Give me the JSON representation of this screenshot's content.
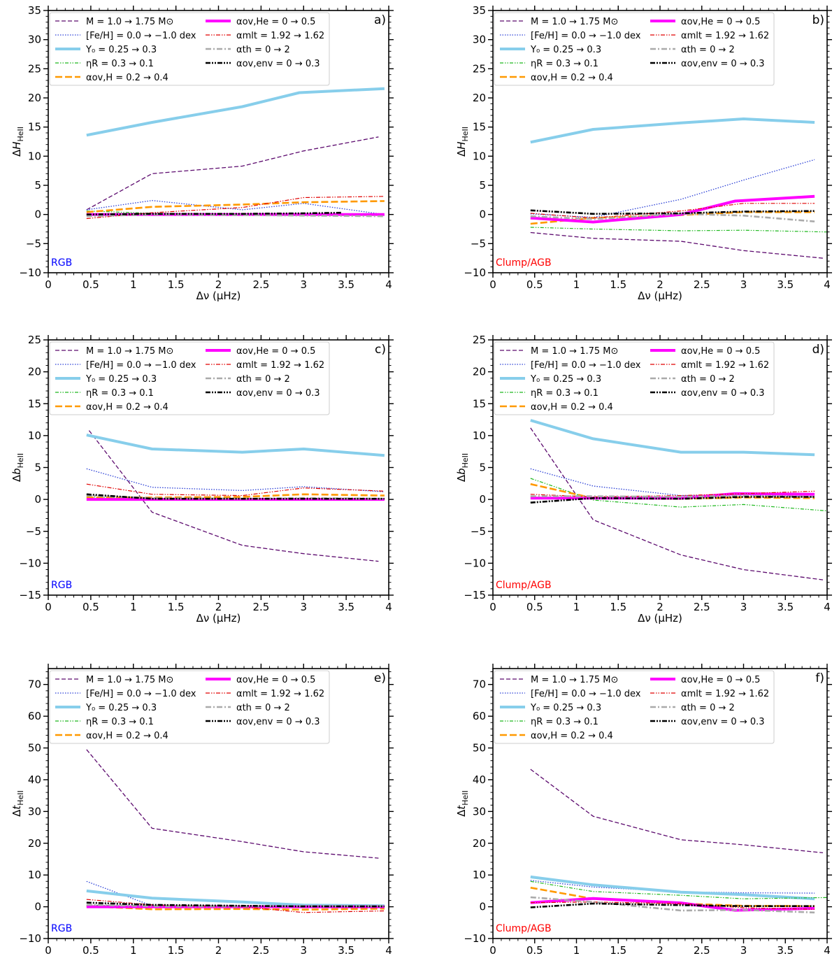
{
  "legend_entries": [
    {
      "key": "M",
      "text": "M = 1.0 → 1.75 M⊙",
      "color": "#5c0a6e",
      "dash": "6,3",
      "width": 1.3
    },
    {
      "key": "FeH",
      "text": "[Fe/H] = 0.0 → −1.0 dex",
      "color": "#2a3fd6",
      "dash": "1.5,2",
      "width": 1.3
    },
    {
      "key": "Y0",
      "text": "Y₀ = 0.25 → 0.3",
      "color": "#87ceeb",
      "dash": "",
      "width": 4
    },
    {
      "key": "etaR",
      "text": "ηR = 0.3 → 0.1",
      "color": "#1db81d",
      "dash": "5,2,1.5,2,1.5,2",
      "width": 1.2
    },
    {
      "key": "aovH",
      "text": "αov,H = 0.2 → 0.4",
      "color": "#ff9900",
      "dash": "10,4",
      "width": 2.6
    },
    {
      "key": "aovHe",
      "text": "αov,He = 0 → 0.5",
      "color": "#ff00ff",
      "dash": "",
      "width": 4
    },
    {
      "key": "amlt",
      "text": "αmlt = 1.92 → 1.62",
      "color": "#e00000",
      "dash": "6,2,1.5,2,1.5,2",
      "width": 1.2
    },
    {
      "key": "ath",
      "text": "αth = 0 → 2",
      "color": "#aaaaaa",
      "dash": "8,3,2,3",
      "width": 2.6
    },
    {
      "key": "aovenv",
      "text": "αov,env = 0 → 0.3",
      "color": "#000000",
      "dash": "7,2,2,2,2,2",
      "width": 2.6
    }
  ],
  "chart_data": [
    {
      "type": "line",
      "panel": "a)",
      "phase_label": "RGB",
      "phase_color": "#0000ff",
      "xlabel": "Δν (μHz)",
      "ylabel": "ΔH_HeII",
      "xlim": [
        0,
        4
      ],
      "ylim": [
        -10,
        35
      ],
      "xticks": [
        0,
        0.5,
        1,
        1.5,
        2,
        2.5,
        3,
        3.5,
        4
      ],
      "yticks": [
        -10,
        -5,
        0,
        5,
        10,
        15,
        20,
        25,
        30,
        35
      ],
      "series": [
        {
          "key": "M",
          "x": [
            0.45,
            1.22,
            2.28,
            3.0,
            3.88
          ],
          "y": [
            0.8,
            7.0,
            8.3,
            10.9,
            13.3
          ]
        },
        {
          "key": "FeH",
          "x": [
            0.45,
            1.22,
            2.28,
            3.0,
            3.95
          ],
          "y": [
            0.8,
            2.4,
            0.8,
            1.9,
            0.0
          ]
        },
        {
          "key": "Y0",
          "x": [
            0.45,
            1.22,
            2.28,
            2.95,
            3.95
          ],
          "y": [
            13.6,
            15.8,
            18.5,
            20.9,
            21.6
          ]
        },
        {
          "key": "etaR",
          "x": [
            0.45,
            1.22,
            2.28,
            3.0,
            3.95
          ],
          "y": [
            0.6,
            0.2,
            0.1,
            0.0,
            0.0
          ]
        },
        {
          "key": "aovH",
          "x": [
            0.45,
            1.22,
            2.28,
            3.0,
            3.95
          ],
          "y": [
            0.4,
            1.3,
            1.7,
            2.1,
            2.3
          ]
        },
        {
          "key": "aovHe",
          "x": [
            0.45,
            1.22,
            2.28,
            3.0,
            3.95
          ],
          "y": [
            0.0,
            0.0,
            0.0,
            0.0,
            0.0
          ]
        },
        {
          "key": "amlt",
          "x": [
            0.45,
            1.22,
            2.28,
            3.0,
            3.95
          ],
          "y": [
            -0.7,
            0.3,
            1.2,
            2.9,
            3.1
          ]
        },
        {
          "key": "ath",
          "x": [
            0.45,
            1.22,
            2.28,
            3.0,
            3.95
          ],
          "y": [
            -0.3,
            0.0,
            -0.1,
            -0.2,
            -0.3
          ]
        },
        {
          "key": "aovenv",
          "x": [
            0.45,
            1.22,
            2.28,
            3.0,
            3.45
          ],
          "y": [
            0.0,
            0.1,
            0.1,
            0.2,
            0.3
          ]
        }
      ]
    },
    {
      "type": "line",
      "panel": "b)",
      "phase_label": "Clump/AGB",
      "phase_color": "#ff0000",
      "xlabel": "Δν (μHz)",
      "ylabel": "ΔH_HeII",
      "xlim": [
        0,
        4
      ],
      "ylim": [
        -10,
        35
      ],
      "xticks": [
        0,
        0.5,
        1,
        1.5,
        2,
        2.5,
        3,
        3.5,
        4
      ],
      "yticks": [
        -10,
        -5,
        0,
        5,
        10,
        15,
        20,
        25,
        30,
        35
      ],
      "series": [
        {
          "key": "M",
          "x": [
            0.45,
            1.2,
            2.25,
            3.0,
            3.95
          ],
          "y": [
            -3.1,
            -4.1,
            -4.6,
            -6.2,
            -7.5
          ]
        },
        {
          "key": "FeH",
          "x": [
            0.45,
            1.2,
            2.25,
            3.0,
            3.85
          ],
          "y": [
            0.1,
            -0.5,
            2.6,
            5.9,
            9.4
          ]
        },
        {
          "key": "Y0",
          "x": [
            0.45,
            1.2,
            2.25,
            3.0,
            3.85
          ],
          "y": [
            12.4,
            14.6,
            15.7,
            16.4,
            15.8
          ]
        },
        {
          "key": "etaR",
          "x": [
            0.45,
            1.2,
            2.25,
            3.0,
            4.0
          ],
          "y": [
            -2.2,
            -2.5,
            -2.8,
            -2.7,
            -3.0
          ]
        },
        {
          "key": "aovH",
          "x": [
            0.45,
            1.2,
            2.25,
            3.0,
            3.85
          ],
          "y": [
            -1.6,
            -0.6,
            -0.1,
            0.4,
            0.4
          ]
        },
        {
          "key": "aovHe",
          "x": [
            0.45,
            1.2,
            2.25,
            2.9,
            3.85
          ],
          "y": [
            -0.6,
            -1.3,
            0.0,
            2.3,
            3.1
          ]
        },
        {
          "key": "amlt",
          "x": [
            0.45,
            1.2,
            2.25,
            3.0,
            3.85
          ],
          "y": [
            0.2,
            -0.6,
            0.6,
            1.9,
            1.9
          ]
        },
        {
          "key": "ath",
          "x": [
            0.45,
            1.2,
            2.25,
            3.0,
            3.85
          ],
          "y": [
            -0.3,
            -0.8,
            0.1,
            -0.2,
            -1.2
          ]
        },
        {
          "key": "aovenv",
          "x": [
            0.45,
            1.2,
            2.25,
            3.0,
            3.85
          ],
          "y": [
            0.7,
            0.1,
            0.2,
            0.5,
            0.6
          ]
        }
      ]
    },
    {
      "type": "line",
      "panel": "c)",
      "phase_label": "RGB",
      "phase_color": "#0000ff",
      "xlabel": "Δν (μHz)",
      "ylabel": "Δb_HeII",
      "xlim": [
        0,
        4
      ],
      "ylim": [
        -15,
        25
      ],
      "xticks": [
        0,
        0.5,
        1,
        1.5,
        2,
        2.5,
        3,
        3.5,
        4
      ],
      "yticks": [
        -15,
        -10,
        -5,
        0,
        5,
        10,
        15,
        20,
        25
      ],
      "series": [
        {
          "key": "M",
          "x": [
            0.48,
            1.22,
            2.28,
            3.0,
            3.88
          ],
          "y": [
            10.8,
            -2.0,
            -7.2,
            -8.5,
            -9.7
          ]
        },
        {
          "key": "FeH",
          "x": [
            0.45,
            1.22,
            2.28,
            3.0,
            3.95
          ],
          "y": [
            4.8,
            1.9,
            1.4,
            2.0,
            1.2
          ]
        },
        {
          "key": "Y0",
          "x": [
            0.45,
            1.22,
            2.28,
            3.0,
            3.95
          ],
          "y": [
            10.1,
            7.9,
            7.4,
            7.9,
            6.9
          ]
        },
        {
          "key": "etaR",
          "x": [
            0.45,
            1.22,
            2.28,
            3.0,
            3.95
          ],
          "y": [
            0.4,
            0.1,
            0.0,
            0.1,
            0.0
          ]
        },
        {
          "key": "aovH",
          "x": [
            0.45,
            1.22,
            2.28,
            3.0,
            3.95
          ],
          "y": [
            0.3,
            0.3,
            0.4,
            0.8,
            0.6
          ]
        },
        {
          "key": "aovHe",
          "x": [
            0.45,
            1.22,
            2.28,
            3.0,
            3.95
          ],
          "y": [
            0.0,
            0.0,
            0.0,
            0.0,
            0.0
          ]
        },
        {
          "key": "amlt",
          "x": [
            0.45,
            1.22,
            2.28,
            3.0,
            3.95
          ],
          "y": [
            2.4,
            0.8,
            0.6,
            1.8,
            1.3
          ]
        },
        {
          "key": "ath",
          "x": [
            0.45,
            1.22,
            2.28,
            3.0,
            3.95
          ],
          "y": [
            0.6,
            0.2,
            0.1,
            0.2,
            0.1
          ]
        },
        {
          "key": "aovenv",
          "x": [
            0.45,
            1.22,
            2.28,
            3.0,
            3.95
          ],
          "y": [
            0.8,
            0.1,
            0.1,
            0.1,
            0.1
          ]
        }
      ]
    },
    {
      "type": "line",
      "panel": "d)",
      "phase_label": "Clump/AGB",
      "phase_color": "#ff0000",
      "xlabel": "Δν (μHz)",
      "ylabel": "Δb_HeII",
      "xlim": [
        0,
        4
      ],
      "ylim": [
        -15,
        25
      ],
      "xticks": [
        0,
        0.5,
        1,
        1.5,
        2,
        2.5,
        3,
        3.5,
        4
      ],
      "yticks": [
        -15,
        -10,
        -5,
        0,
        5,
        10,
        15,
        20,
        25
      ],
      "series": [
        {
          "key": "M",
          "x": [
            0.45,
            1.2,
            2.25,
            3.0,
            3.95
          ],
          "y": [
            11.2,
            -3.2,
            -8.7,
            -11.0,
            -12.6
          ]
        },
        {
          "key": "FeH",
          "x": [
            0.45,
            1.2,
            2.25,
            3.0,
            3.85
          ],
          "y": [
            4.8,
            2.1,
            0.6,
            0.7,
            0.4
          ]
        },
        {
          "key": "Y0",
          "x": [
            0.45,
            1.2,
            2.25,
            3.0,
            3.85
          ],
          "y": [
            12.4,
            9.5,
            7.4,
            7.4,
            7.0
          ]
        },
        {
          "key": "etaR",
          "x": [
            0.45,
            1.2,
            2.25,
            3.0,
            4.0
          ],
          "y": [
            3.3,
            -0.1,
            -1.2,
            -0.8,
            -1.8
          ]
        },
        {
          "key": "aovH",
          "x": [
            0.45,
            1.2,
            2.25,
            3.0,
            3.85
          ],
          "y": [
            2.4,
            0.2,
            0.1,
            0.3,
            0.2
          ]
        },
        {
          "key": "aovHe",
          "x": [
            0.45,
            1.2,
            2.25,
            2.9,
            3.85
          ],
          "y": [
            0.2,
            0.2,
            0.2,
            0.9,
            0.8
          ]
        },
        {
          "key": "amlt",
          "x": [
            0.45,
            1.2,
            2.25,
            3.0,
            3.85
          ],
          "y": [
            0.8,
            0.4,
            0.6,
            0.9,
            1.3
          ]
        },
        {
          "key": "ath",
          "x": [
            0.45,
            1.2,
            2.25,
            3.0,
            3.85
          ],
          "y": [
            0.5,
            0.5,
            0.4,
            0.6,
            0.4
          ]
        },
        {
          "key": "aovenv",
          "x": [
            0.45,
            1.2,
            2.25,
            3.0,
            3.85
          ],
          "y": [
            -0.5,
            0.2,
            0.1,
            0.4,
            0.4
          ]
        }
      ]
    },
    {
      "type": "line",
      "panel": "e)",
      "phase_label": "RGB",
      "phase_color": "#0000ff",
      "xlabel": "Δν (μHz)",
      "ylabel": "Δt_HeII",
      "xlim": [
        0,
        4
      ],
      "ylim": [
        -10,
        75
      ],
      "xticks": [
        0,
        0.5,
        1,
        1.5,
        2,
        2.5,
        3,
        3.5,
        4
      ],
      "yticks": [
        -10,
        0,
        10,
        20,
        30,
        40,
        50,
        60,
        70
      ],
      "series": [
        {
          "key": "M",
          "x": [
            0.45,
            1.22,
            2.28,
            3.0,
            3.88
          ],
          "y": [
            49.5,
            24.7,
            20.5,
            17.3,
            15.3
          ]
        },
        {
          "key": "FeH",
          "x": [
            0.45,
            1.22,
            2.28,
            3.0,
            3.95
          ],
          "y": [
            8.0,
            0.3,
            0.2,
            0.3,
            0.2
          ]
        },
        {
          "key": "Y0",
          "x": [
            0.45,
            1.22,
            2.28,
            3.0,
            3.95
          ],
          "y": [
            5.0,
            2.7,
            1.5,
            0.5,
            0.3
          ]
        },
        {
          "key": "etaR",
          "x": [
            0.45,
            1.22,
            2.28,
            3.0,
            3.95
          ],
          "y": [
            0.5,
            0.2,
            0.1,
            0.2,
            0.2
          ]
        },
        {
          "key": "aovH",
          "x": [
            0.45,
            1.22,
            2.28,
            3.0,
            3.95
          ],
          "y": [
            0.2,
            -0.8,
            -0.7,
            -0.9,
            -0.6
          ]
        },
        {
          "key": "aovHe",
          "x": [
            0.45,
            1.22,
            2.28,
            3.0,
            3.95
          ],
          "y": [
            0.0,
            0.0,
            0.0,
            0.0,
            0.0
          ]
        },
        {
          "key": "amlt",
          "x": [
            0.45,
            1.22,
            2.28,
            3.0,
            3.95
          ],
          "y": [
            2.3,
            0.6,
            0.0,
            -1.8,
            -1.3
          ]
        },
        {
          "key": "ath",
          "x": [
            0.45,
            1.22,
            2.28,
            3.0,
            3.95
          ],
          "y": [
            0.6,
            0.2,
            0.1,
            0.2,
            0.2
          ]
        },
        {
          "key": "aovenv",
          "x": [
            0.45,
            1.22,
            2.28,
            3.0,
            3.95
          ],
          "y": [
            1.3,
            0.6,
            0.3,
            0.1,
            0.1
          ]
        }
      ]
    },
    {
      "type": "line",
      "panel": "f)",
      "phase_label": "Clump/AGB",
      "phase_color": "#ff0000",
      "xlabel": "Δν (μHz)",
      "ylabel": "Δt_HeII",
      "xlim": [
        0,
        4
      ],
      "ylim": [
        -10,
        75
      ],
      "xticks": [
        0,
        0.5,
        1,
        1.5,
        2,
        2.5,
        3,
        3.5,
        4
      ],
      "yticks": [
        -10,
        0,
        10,
        20,
        30,
        40,
        50,
        60,
        70
      ],
      "series": [
        {
          "key": "M",
          "x": [
            0.45,
            1.2,
            2.25,
            3.0,
            3.95
          ],
          "y": [
            43.3,
            28.5,
            21.1,
            19.5,
            17.0
          ]
        },
        {
          "key": "FeH",
          "x": [
            0.45,
            1.2,
            2.25,
            3.0,
            3.85
          ],
          "y": [
            8.3,
            6.2,
            4.7,
            4.4,
            4.3
          ]
        },
        {
          "key": "Y0",
          "x": [
            0.45,
            1.2,
            2.25,
            3.0,
            3.85
          ],
          "y": [
            9.4,
            6.9,
            4.6,
            3.8,
            2.5
          ]
        },
        {
          "key": "etaR",
          "x": [
            0.45,
            1.2,
            2.25,
            3.0,
            4.0
          ],
          "y": [
            8.0,
            4.8,
            3.6,
            2.5,
            2.9
          ]
        },
        {
          "key": "aovH",
          "x": [
            0.45,
            1.2,
            2.25,
            3.0,
            3.85
          ],
          "y": [
            6.0,
            2.5,
            1.0,
            0.3,
            0.2
          ]
        },
        {
          "key": "aovHe",
          "x": [
            0.45,
            1.2,
            2.25,
            2.9,
            3.85
          ],
          "y": [
            1.3,
            2.6,
            1.2,
            -1.1,
            -0.5
          ]
        },
        {
          "key": "amlt",
          "x": [
            0.45,
            1.2,
            2.25,
            3.0,
            3.85
          ],
          "y": [
            1.3,
            1.5,
            1.0,
            -0.3,
            -0.8
          ]
        },
        {
          "key": "ath",
          "x": [
            0.45,
            1.2,
            2.25,
            3.0,
            3.85
          ],
          "y": [
            3.0,
            1.5,
            -1.2,
            -1.0,
            -1.8
          ]
        },
        {
          "key": "aovenv",
          "x": [
            0.45,
            1.2,
            2.25,
            3.0,
            3.85
          ],
          "y": [
            -0.2,
            1.0,
            0.5,
            0.2,
            0.2
          ]
        }
      ]
    }
  ]
}
